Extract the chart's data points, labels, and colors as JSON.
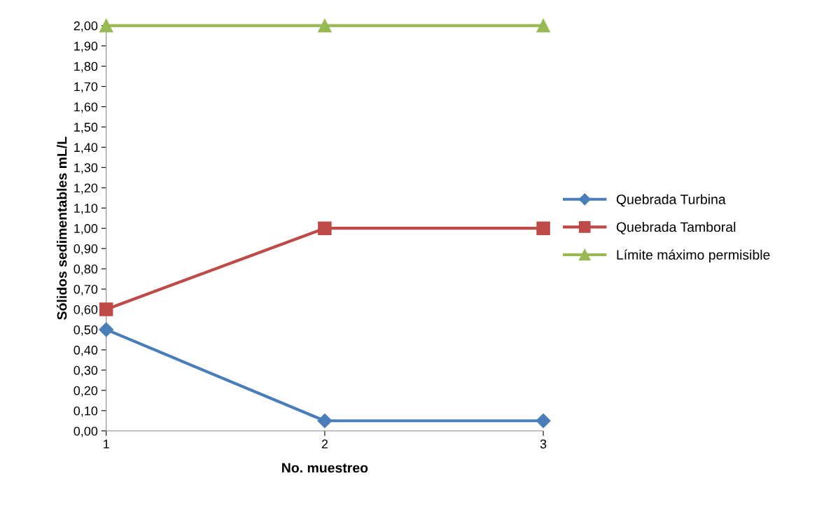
{
  "chart_data": {
    "type": "line",
    "xlabel": "No. muestreo",
    "ylabel": "Sólidos sedimentables mL/L",
    "categories": [
      "1",
      "2",
      "3"
    ],
    "series": [
      {
        "name": "Quebrada Turbina",
        "color": "#4a7ebb",
        "marker": "diamond",
        "values": [
          0.5,
          0.05,
          0.05
        ]
      },
      {
        "name": "Quebrada Tamboral",
        "color": "#be4b48",
        "marker": "square",
        "values": [
          0.6,
          1.0,
          1.0
        ]
      },
      {
        "name": "Límite máximo permisible",
        "color": "#98b954",
        "marker": "triangle",
        "values": [
          2.0,
          2.0,
          2.0
        ]
      }
    ],
    "ylim": [
      0,
      2
    ],
    "yticks": [
      {
        "value": 0,
        "label": "0,00"
      },
      {
        "value": 0.1,
        "label": "0,10"
      },
      {
        "value": 0.2,
        "label": "0,20"
      },
      {
        "value": 0.3,
        "label": "0,30"
      },
      {
        "value": 0.4,
        "label": "0,40"
      },
      {
        "value": 0.5,
        "label": "0,50"
      },
      {
        "value": 0.6,
        "label": "0,60"
      },
      {
        "value": 0.7,
        "label": "0,70"
      },
      {
        "value": 0.8,
        "label": "0,80"
      },
      {
        "value": 0.9,
        "label": "0,90"
      },
      {
        "value": 1.0,
        "label": "1,00"
      },
      {
        "value": 1.1,
        "label": "1,10"
      },
      {
        "value": 1.2,
        "label": "1,20"
      },
      {
        "value": 1.3,
        "label": "1,30"
      },
      {
        "value": 1.4,
        "label": "1,40"
      },
      {
        "value": 1.5,
        "label": "1,50"
      },
      {
        "value": 1.6,
        "label": "1,60"
      },
      {
        "value": 1.7,
        "label": "1,70"
      },
      {
        "value": 1.8,
        "label": "1,80"
      },
      {
        "value": 1.9,
        "label": "1,90"
      },
      {
        "value": 2.0,
        "label": "2,00"
      }
    ],
    "grid": false,
    "legend": "right",
    "line_style": "solid"
  }
}
